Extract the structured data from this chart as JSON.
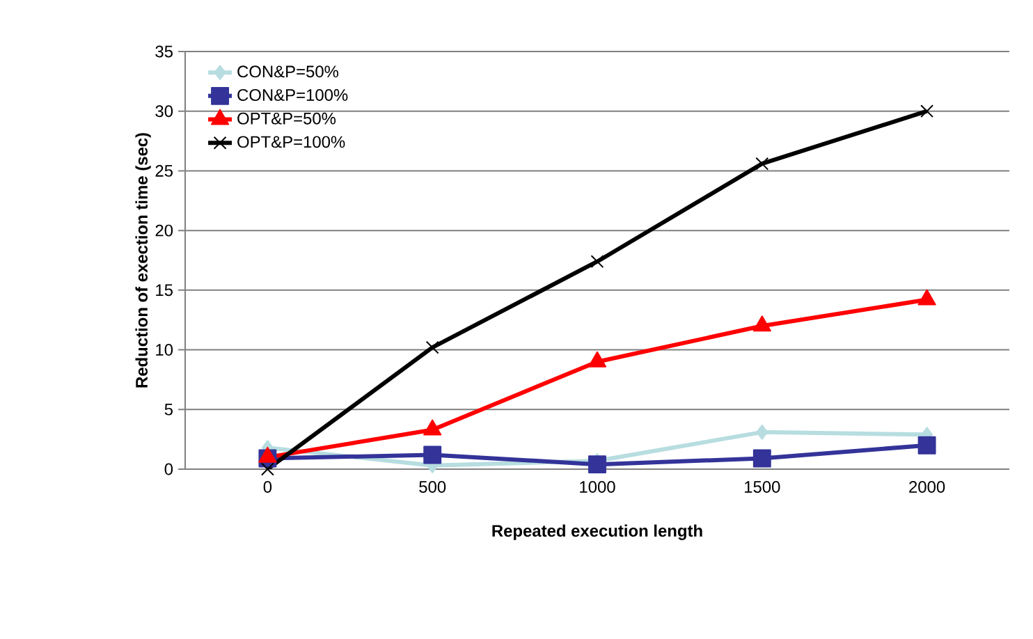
{
  "chart_data": {
    "type": "line",
    "xlabel": "Repeated execution length",
    "ylabel": "Reduction of exection time (sec)",
    "categories": [
      "0",
      "500",
      "1000",
      "1500",
      "2000"
    ],
    "series": [
      {
        "name": "CON&P=50%",
        "color": "#b7dde0",
        "marker": "diamond",
        "values": [
          1.8,
          0.3,
          0.7,
          3.1,
          2.9
        ]
      },
      {
        "name": "CON&P=100%",
        "color": "#333399",
        "marker": "square",
        "values": [
          0.9,
          1.2,
          0.4,
          0.9,
          2.0
        ]
      },
      {
        "name": "OPT&P=50%",
        "color": "#ff0000",
        "marker": "triangle",
        "values": [
          1.0,
          3.3,
          9.0,
          12.0,
          14.2
        ]
      },
      {
        "name": "OPT&P=100%",
        "color": "#000000",
        "marker": "cross",
        "values": [
          0.0,
          10.2,
          17.4,
          25.6,
          30.0
        ]
      }
    ],
    "ylim": [
      0,
      35
    ],
    "yticks": [
      0,
      5,
      10,
      15,
      20,
      25,
      30,
      35
    ],
    "grid": "y",
    "legend": "top left"
  }
}
